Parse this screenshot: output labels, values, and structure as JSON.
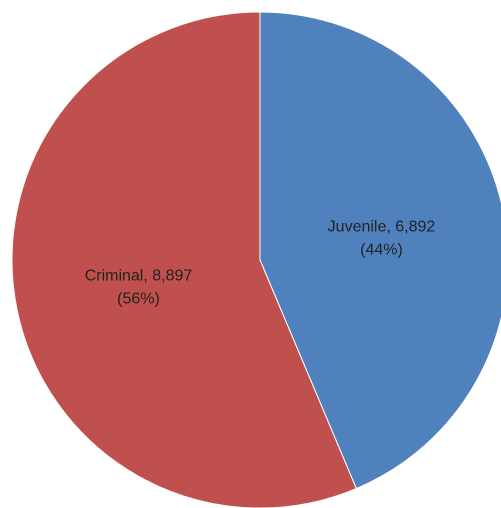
{
  "chart_data": {
    "type": "pie",
    "title": "",
    "legend": "none",
    "start_angle_deg": 0,
    "direction": "clockwise",
    "slices": [
      {
        "name": "Juvenile",
        "value": 6892,
        "percent": 44,
        "color": "#4f81bd",
        "label_line1": "Juvenile, 6,892",
        "label_line2": "(44%)"
      },
      {
        "name": "Criminal",
        "value": 8897,
        "percent": 56,
        "color": "#c0504d",
        "label_line1": "Criminal, 8,897",
        "label_line2": "(56%)"
      }
    ]
  }
}
